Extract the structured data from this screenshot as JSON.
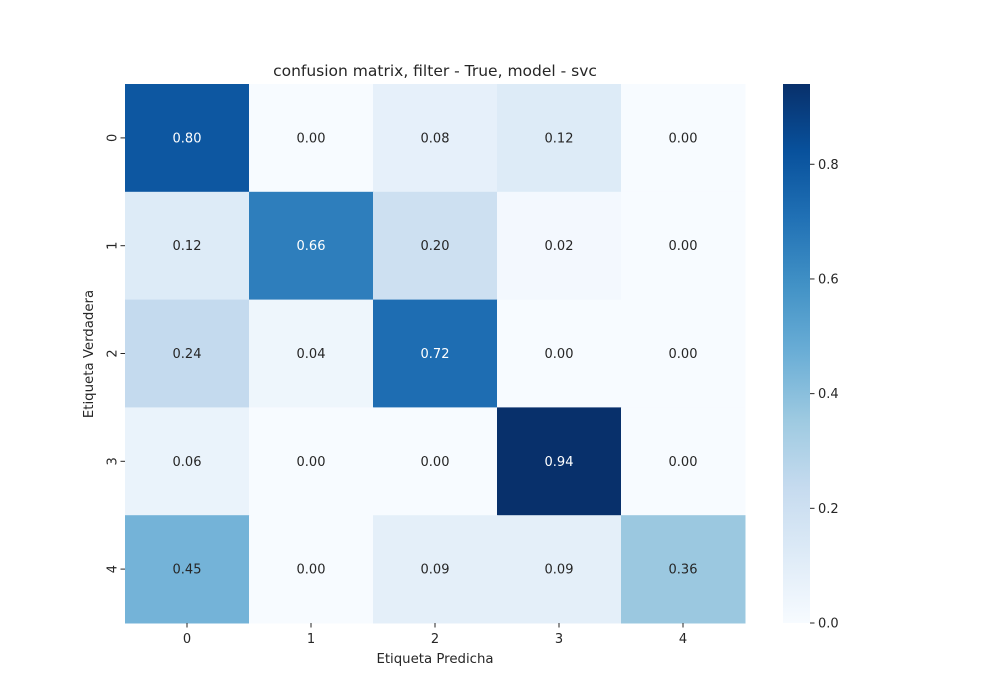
{
  "chart_data": {
    "type": "heatmap",
    "title": "confusion matrix, filter - True, model - svc",
    "xlabel": "Etiqueta Predicha",
    "ylabel": "Etiqueta Verdadera",
    "x_categories": [
      "0",
      "1",
      "2",
      "3",
      "4"
    ],
    "y_categories": [
      "0",
      "1",
      "2",
      "3",
      "4"
    ],
    "values": [
      [
        0.8,
        0.0,
        0.08,
        0.12,
        0.0
      ],
      [
        0.12,
        0.66,
        0.2,
        0.02,
        0.0
      ],
      [
        0.24,
        0.04,
        0.72,
        0.0,
        0.0
      ],
      [
        0.06,
        0.0,
        0.0,
        0.94,
        0.0
      ],
      [
        0.45,
        0.0,
        0.09,
        0.09,
        0.36
      ]
    ],
    "cell_labels": [
      [
        "0.80",
        "0.00",
        "0.08",
        "0.12",
        "0.00"
      ],
      [
        "0.12",
        "0.66",
        "0.20",
        "0.02",
        "0.00"
      ],
      [
        "0.24",
        "0.04",
        "0.72",
        "0.00",
        "0.00"
      ],
      [
        "0.06",
        "0.00",
        "0.00",
        "0.94",
        "0.00"
      ],
      [
        "0.45",
        "0.00",
        "0.09",
        "0.09",
        "0.36"
      ]
    ],
    "colorscale": "Blues",
    "colorbar": {
      "range": [
        0.0,
        0.94
      ],
      "ticks": [
        0.0,
        0.2,
        0.4,
        0.6,
        0.8
      ],
      "tick_labels": [
        "0.0",
        "0.2",
        "0.4",
        "0.6",
        "0.8"
      ]
    },
    "grid": false
  }
}
